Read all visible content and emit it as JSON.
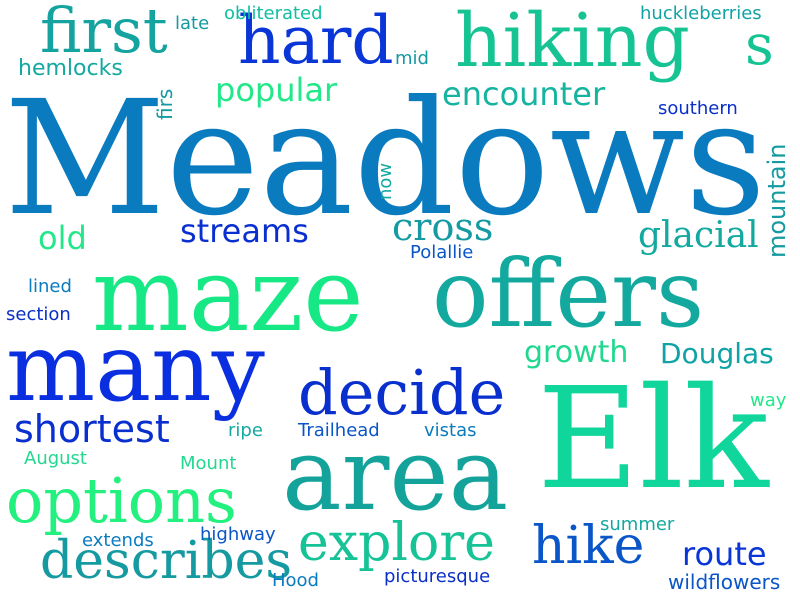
{
  "words": [
    {
      "text": "Meadows",
      "color": "#0a7bbf",
      "family": "serif"
    },
    {
      "text": "Elk",
      "color": "#10d69b",
      "family": "serif"
    },
    {
      "text": "area",
      "color": "#14a39a",
      "family": "serif"
    },
    {
      "text": "maze",
      "color": "#15e884",
      "family": "serif"
    },
    {
      "text": "offers",
      "color": "#14a99f",
      "family": "serif"
    },
    {
      "text": "many",
      "color": "#0a2fe0",
      "family": "serif"
    },
    {
      "text": "hiking",
      "color": "#16c393",
      "family": "serif"
    },
    {
      "text": "s",
      "color": "#16c393",
      "family": "serif"
    },
    {
      "text": "hard",
      "color": "#0a36d8",
      "family": "serif"
    },
    {
      "text": "first",
      "color": "#15a39f",
      "family": "serif"
    },
    {
      "text": "decide",
      "color": "#0a2fcf",
      "family": "serif"
    },
    {
      "text": "options",
      "color": "#22f07f",
      "family": "serif"
    },
    {
      "text": "explore",
      "color": "#16c396",
      "family": "serif"
    },
    {
      "text": "describes",
      "color": "#149aa0",
      "family": "serif"
    },
    {
      "text": "hike",
      "color": "#0a56c8",
      "family": "serif"
    },
    {
      "text": "shortest",
      "color": "#0a2fcf",
      "family": "sans"
    },
    {
      "text": "streams",
      "color": "#0a2fd0",
      "family": "sans"
    },
    {
      "text": "cross",
      "color": "#149aa0",
      "family": "serif"
    },
    {
      "text": "glacial",
      "color": "#14a9a0",
      "family": "serif"
    },
    {
      "text": "encounter",
      "color": "#15b3a0",
      "family": "sans"
    },
    {
      "text": "popular",
      "color": "#22e88a",
      "family": "sans"
    },
    {
      "text": "growth",
      "color": "#22d890",
      "family": "sans"
    },
    {
      "text": "Douglas",
      "color": "#10a3a5",
      "family": "sans"
    },
    {
      "text": "route",
      "color": "#0a36d8",
      "family": "sans"
    },
    {
      "text": "old",
      "color": "#22e88a",
      "family": "sans"
    },
    {
      "text": "mountain",
      "color": "#149aa0",
      "family": "sans"
    },
    {
      "text": "hemlocks",
      "color": "#14a9a0",
      "family": "sans"
    },
    {
      "text": "obliterated",
      "color": "#10bfa3",
      "family": "sans"
    },
    {
      "text": "huckleberries",
      "color": "#10a3a5",
      "family": "sans"
    },
    {
      "text": "late",
      "color": "#149aa0",
      "family": "sans"
    },
    {
      "text": "mid",
      "color": "#149aa0",
      "family": "sans"
    },
    {
      "text": "firs",
      "color": "#149aa0",
      "family": "sans"
    },
    {
      "text": "southern",
      "color": "#0a2fc8",
      "family": "sans"
    },
    {
      "text": "now",
      "color": "#14a9a0",
      "family": "sans"
    },
    {
      "text": "Polallie",
      "color": "#0a56c8",
      "family": "sans"
    },
    {
      "text": "lined",
      "color": "#0a7bbf",
      "family": "sans"
    },
    {
      "text": "section",
      "color": "#0a2fc8",
      "family": "sans"
    },
    {
      "text": "way",
      "color": "#22e88a",
      "family": "sans"
    },
    {
      "text": "ripe",
      "color": "#14a9a0",
      "family": "sans"
    },
    {
      "text": "Trailhead",
      "color": "#0a56c8",
      "family": "sans"
    },
    {
      "text": "vistas",
      "color": "#0a7bbf",
      "family": "sans"
    },
    {
      "text": "August",
      "color": "#22d890",
      "family": "sans"
    },
    {
      "text": "Mount",
      "color": "#22d890",
      "family": "sans"
    },
    {
      "text": "summer",
      "color": "#14a9a0",
      "family": "sans"
    },
    {
      "text": "extends",
      "color": "#0a7bbf",
      "family": "sans"
    },
    {
      "text": "highway",
      "color": "#0a56c8",
      "family": "sans"
    },
    {
      "text": "Hood",
      "color": "#0a7bbf",
      "family": "sans"
    },
    {
      "text": "picturesque",
      "color": "#0a2fc8",
      "family": "sans"
    },
    {
      "text": "wildflowers",
      "color": "#0a56c8",
      "family": "sans"
    }
  ]
}
